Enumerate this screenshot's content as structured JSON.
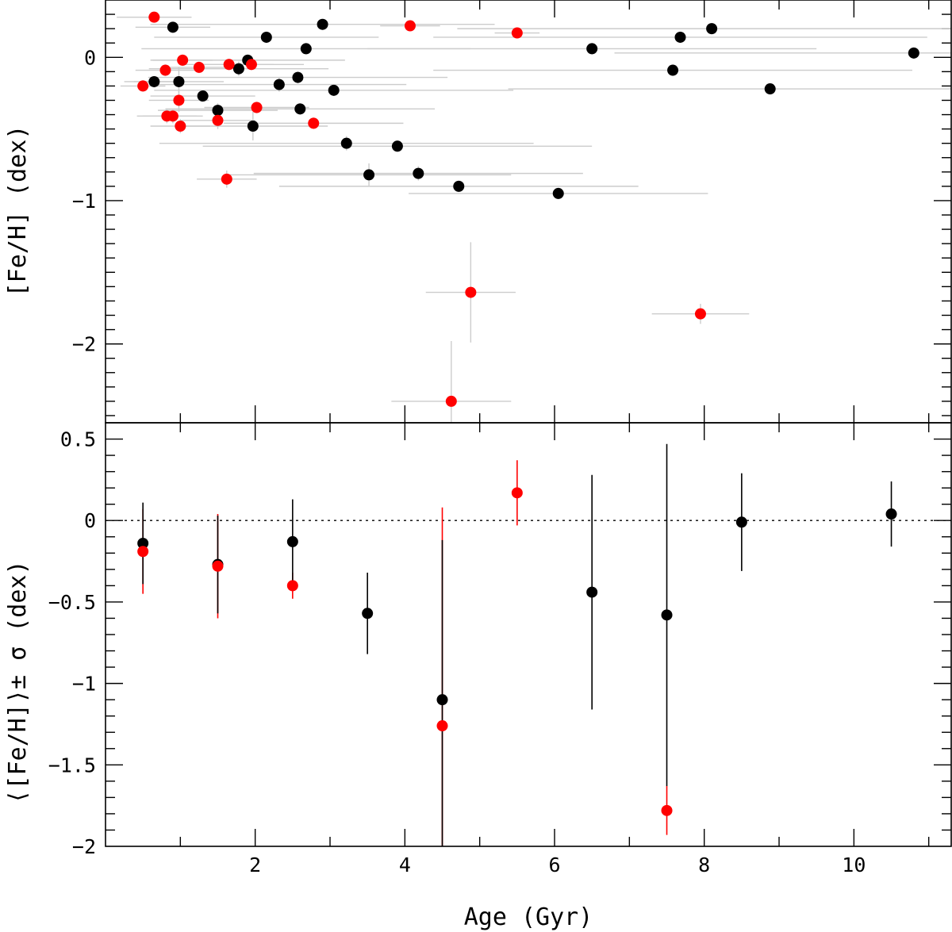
{
  "chart_data": [
    {
      "type": "scatter",
      "panel": "top",
      "xlabel": "Age (Gyr)",
      "ylabel": "[Fe/H] (dex)",
      "xlim": [
        0.0,
        11.3
      ],
      "ylim": [
        -2.55,
        0.4
      ],
      "y_ticks": [
        0,
        -1,
        -2
      ],
      "y_tick_labels": [
        "0",
        "−1",
        "−2"
      ],
      "colors": {
        "black_series": "#000000",
        "red_series": "#ff0000",
        "error_bars": "#cccccc"
      },
      "series": [
        {
          "color": "black",
          "points": [
            {
              "x": 0.9,
              "y": 0.21,
              "xerr": 0.5,
              "yerr": 0.02
            },
            {
              "x": 0.65,
              "y": -0.17,
              "xerr": 0.4,
              "yerr": 0.04
            },
            {
              "x": 0.98,
              "y": -0.17,
              "xerr": 0.6,
              "yerr": 0.1
            },
            {
              "x": 1.3,
              "y": -0.27,
              "xerr": 0.7,
              "yerr": 0.04
            },
            {
              "x": 1.5,
              "y": -0.37,
              "xerr": 0.8,
              "yerr": 0.05
            },
            {
              "x": 1.78,
              "y": -0.08,
              "xerr": 1.2,
              "yerr": 0.05
            },
            {
              "x": 1.9,
              "y": -0.02,
              "xerr": 1.3,
              "yerr": 0.04
            },
            {
              "x": 1.97,
              "y": -0.48,
              "xerr": 1.0,
              "yerr": 0.1
            },
            {
              "x": 2.15,
              "y": 0.14,
              "xerr": 1.5,
              "yerr": 0.04
            },
            {
              "x": 2.32,
              "y": -0.19,
              "xerr": 1.7,
              "yerr": 0.05
            },
            {
              "x": 2.57,
              "y": -0.14,
              "xerr": 2.0,
              "yerr": 0.04
            },
            {
              "x": 2.6,
              "y": -0.36,
              "xerr": 1.8,
              "yerr": 0.04
            },
            {
              "x": 2.68,
              "y": 0.06,
              "xerr": 2.2,
              "yerr": 0.04
            },
            {
              "x": 2.9,
              "y": 0.23,
              "xerr": 2.3,
              "yerr": 0.03
            },
            {
              "x": 3.05,
              "y": -0.23,
              "xerr": 2.4,
              "yerr": 0.04
            },
            {
              "x": 3.22,
              "y": -0.6,
              "xerr": 2.5,
              "yerr": 0.05
            },
            {
              "x": 3.52,
              "y": -0.82,
              "xerr": 1.9,
              "yerr": 0.08
            },
            {
              "x": 3.9,
              "y": -0.62,
              "xerr": 2.6,
              "yerr": 0.04
            },
            {
              "x": 4.18,
              "y": -0.81,
              "xerr": 2.2,
              "yerr": 0.05
            },
            {
              "x": 4.72,
              "y": -0.9,
              "xerr": 2.4,
              "yerr": 0.04
            },
            {
              "x": 6.05,
              "y": -0.95,
              "xerr": 2.0,
              "yerr": 0.04
            },
            {
              "x": 6.5,
              "y": 0.06,
              "xerr": 3.0,
              "yerr": 0.04
            },
            {
              "x": 7.58,
              "y": -0.09,
              "xerr": 3.2,
              "yerr": 0.04
            },
            {
              "x": 7.68,
              "y": 0.14,
              "xerr": 3.3,
              "yerr": 0.04
            },
            {
              "x": 8.1,
              "y": 0.2,
              "xerr": 3.4,
              "yerr": 0.04
            },
            {
              "x": 8.88,
              "y": -0.22,
              "xerr": 3.5,
              "yerr": 0.04
            },
            {
              "x": 10.8,
              "y": 0.03,
              "xerr": 4.0,
              "yerr": 0.04
            }
          ]
        },
        {
          "color": "red",
          "points": [
            {
              "x": 0.65,
              "y": 0.28,
              "xerr": 0.5,
              "yerr": 0.02
            },
            {
              "x": 0.5,
              "y": -0.2,
              "xerr": 0.3,
              "yerr": 0.04
            },
            {
              "x": 0.8,
              "y": -0.09,
              "xerr": 0.4,
              "yerr": 0.04
            },
            {
              "x": 1.03,
              "y": -0.02,
              "xerr": 0.4,
              "yerr": 0.04
            },
            {
              "x": 1.25,
              "y": -0.07,
              "xerr": 0.5,
              "yerr": 0.04
            },
            {
              "x": 0.98,
              "y": -0.3,
              "xerr": 0.4,
              "yerr": 0.08
            },
            {
              "x": 0.82,
              "y": -0.41,
              "xerr": 0.4,
              "yerr": 0.05
            },
            {
              "x": 0.9,
              "y": -0.41,
              "xerr": 0.4,
              "yerr": 0.05
            },
            {
              "x": 1.0,
              "y": -0.48,
              "xerr": 0.4,
              "yerr": 0.05
            },
            {
              "x": 1.5,
              "y": -0.44,
              "xerr": 0.5,
              "yerr": 0.06
            },
            {
              "x": 1.65,
              "y": -0.05,
              "xerr": 0.6,
              "yerr": 0.04
            },
            {
              "x": 1.95,
              "y": -0.05,
              "xerr": 0.7,
              "yerr": 0.04
            },
            {
              "x": 2.02,
              "y": -0.35,
              "xerr": 0.7,
              "yerr": 0.04
            },
            {
              "x": 2.78,
              "y": -0.46,
              "xerr": 1.2,
              "yerr": 0.04
            },
            {
              "x": 1.62,
              "y": -0.85,
              "xerr": 0.4,
              "yerr": 0.06
            },
            {
              "x": 4.07,
              "y": 0.22,
              "xerr": 0.4,
              "yerr": 0.03
            },
            {
              "x": 5.5,
              "y": 0.17,
              "xerr": 0.3,
              "yerr": 0.03
            },
            {
              "x": 4.88,
              "y": -1.64,
              "xerr": 0.6,
              "yerr": 0.35
            },
            {
              "x": 4.62,
              "y": -2.4,
              "xerr": 0.8,
              "yerr": 0.42
            },
            {
              "x": 7.95,
              "y": -1.79,
              "xerr": 0.65,
              "yerr": 0.07
            }
          ]
        }
      ]
    },
    {
      "type": "scatter",
      "panel": "bottom",
      "xlabel": "Age (Gyr)",
      "ylabel": "⟨[Fe/H]⟩± σ (dex)",
      "xlim": [
        0.0,
        11.3
      ],
      "ylim": [
        -2.0,
        0.6
      ],
      "x_ticks": [
        2,
        4,
        6,
        8,
        10
      ],
      "x_tick_labels": [
        "2",
        "4",
        "6",
        "8",
        "10"
      ],
      "y_ticks": [
        0.5,
        0,
        -0.5,
        -1,
        -1.5,
        -2
      ],
      "y_tick_labels": [
        "0.5",
        "0",
        "−0.5",
        "−1",
        "−1.5",
        "−2"
      ],
      "reference_line": {
        "y": 0,
        "style": "dotted"
      },
      "series": [
        {
          "color": "black",
          "points": [
            {
              "x": 0.5,
              "y": -0.14,
              "err": 0.25
            },
            {
              "x": 1.5,
              "y": -0.27,
              "err": 0.3
            },
            {
              "x": 2.5,
              "y": -0.13,
              "err": 0.26
            },
            {
              "x": 3.5,
              "y": -0.57,
              "err": 0.25
            },
            {
              "x": 4.5,
              "y": -1.1,
              "err": 0.98
            },
            {
              "x": 6.5,
              "y": -0.44,
              "err": 0.72
            },
            {
              "x": 7.5,
              "y": -0.58,
              "err": 1.05
            },
            {
              "x": 8.5,
              "y": -0.01,
              "err": 0.3
            },
            {
              "x": 10.5,
              "y": 0.04,
              "err": 0.2
            }
          ]
        },
        {
          "color": "red",
          "points": [
            {
              "x": 0.5,
              "y": -0.19,
              "err": 0.26
            },
            {
              "x": 1.5,
              "y": -0.28,
              "err": 0.32
            },
            {
              "x": 2.5,
              "y": -0.4,
              "err": 0.08
            },
            {
              "x": 4.5,
              "y": -1.26,
              "err": 1.34
            },
            {
              "x": 5.5,
              "y": 0.17,
              "err": 0.2
            },
            {
              "x": 7.5,
              "y": -1.78,
              "err": 0.15
            }
          ]
        }
      ]
    }
  ]
}
